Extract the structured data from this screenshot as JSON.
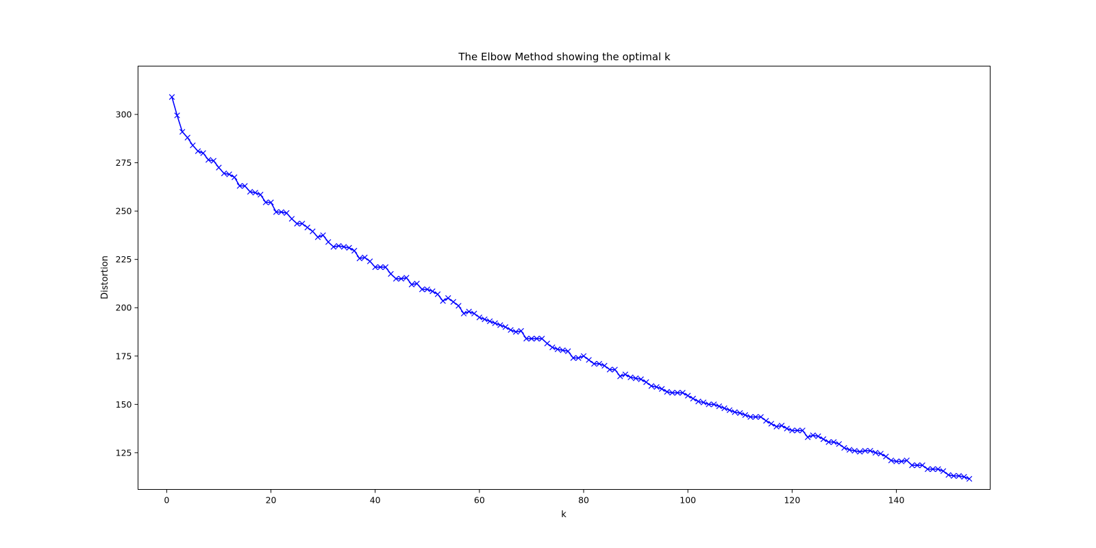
{
  "chart_data": {
    "type": "line",
    "title": "The Elbow Method showing the optimal k",
    "xlabel": "k",
    "ylabel": "Distortion",
    "xlim": [
      -5.5,
      158
    ],
    "ylim": [
      106,
      325
    ],
    "xticks": [
      0,
      20,
      40,
      60,
      80,
      100,
      120,
      140
    ],
    "yticks": [
      125,
      150,
      175,
      200,
      225,
      250,
      275,
      300
    ],
    "grid": false,
    "legend": "none",
    "series": [
      {
        "color": "#0000ff",
        "marker": "x",
        "x_start": 1,
        "x_step": 1,
        "values": [
          309,
          299.5,
          291,
          288,
          284,
          281,
          280,
          276.5,
          276,
          272.5,
          269.5,
          269,
          267.5,
          263,
          263,
          260,
          259.5,
          258.5,
          254.5,
          254.5,
          249.5,
          249.5,
          249,
          246,
          243.5,
          243.5,
          241.5,
          239.5,
          236.5,
          237.5,
          234,
          231.5,
          232,
          231.5,
          231,
          229.5,
          225.5,
          226,
          224,
          221,
          221,
          221,
          217.5,
          215,
          215,
          215.5,
          212,
          212.5,
          209.5,
          209.5,
          208.5,
          207,
          203.5,
          205,
          203,
          201,
          197,
          198,
          197,
          195,
          194,
          193,
          192,
          191,
          190,
          188.5,
          187.5,
          188,
          184,
          184,
          184,
          184,
          181.5,
          179.5,
          178.5,
          178,
          177.5,
          174,
          174,
          175,
          173,
          171,
          171,
          170,
          168,
          168,
          164.5,
          165.5,
          164,
          163.5,
          163,
          161.5,
          159.5,
          159,
          158,
          156.5,
          156,
          156,
          156,
          154.5,
          153,
          151.5,
          151,
          150,
          150,
          149,
          148,
          147,
          146,
          145.5,
          144.5,
          143.5,
          143.5,
          143.5,
          141.5,
          140,
          138.5,
          139,
          137.5,
          136.5,
          136.5,
          136.5,
          133,
          134,
          133.5,
          132,
          130.5,
          130.5,
          129.5,
          127.5,
          126.5,
          126,
          125.5,
          126,
          126,
          125,
          124.5,
          123,
          121,
          120.5,
          120.5,
          121,
          118.5,
          118.5,
          118.5,
          116.5,
          116.5,
          116.5,
          115.5,
          113.5,
          113,
          113,
          112.5,
          111.5
        ]
      }
    ]
  }
}
